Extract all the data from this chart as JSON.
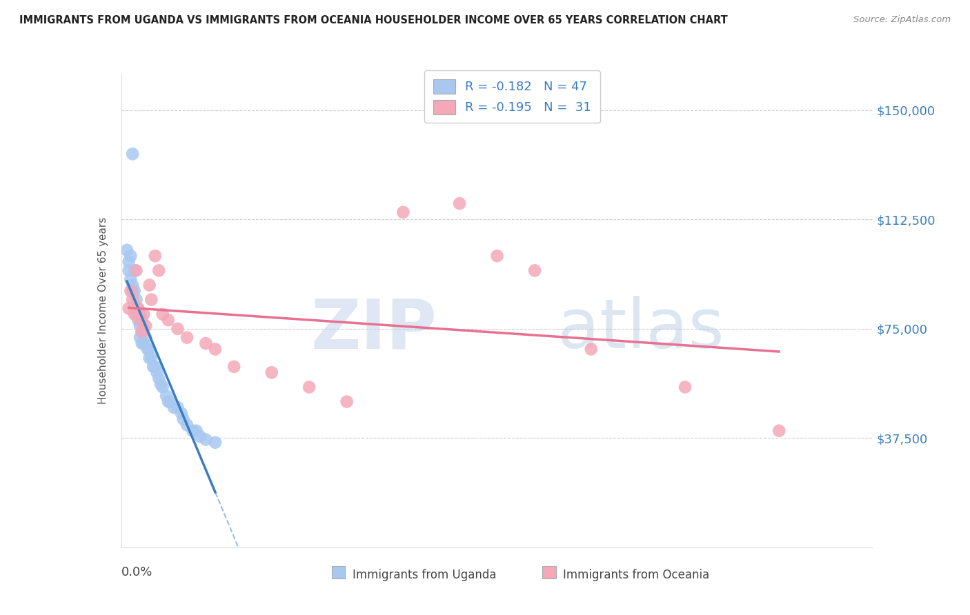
{
  "title": "IMMIGRANTS FROM UGANDA VS IMMIGRANTS FROM OCEANIA HOUSEHOLDER INCOME OVER 65 YEARS CORRELATION CHART",
  "source": "Source: ZipAtlas.com",
  "ylabel": "Householder Income Over 65 years",
  "xlim": [
    0.0,
    0.4
  ],
  "ylim": [
    0,
    162500
  ],
  "yticks": [
    0,
    37500,
    75000,
    112500,
    150000
  ],
  "ytick_labels": [
    "",
    "$37,500",
    "$75,000",
    "$112,500",
    "$150,000"
  ],
  "uganda_color": "#a8c8f0",
  "oceania_color": "#f4a8b8",
  "uganda_line_color": "#3a7dbf",
  "oceania_line_color": "#e87090",
  "uganda_R": -0.182,
  "uganda_N": 47,
  "oceania_R": -0.195,
  "oceania_N": 31,
  "legend_label_uganda": "Immigrants from Uganda",
  "legend_label_oceania": "Immigrants from Oceania",
  "watermark_zip": "ZIP",
  "watermark_atlas": "atlas",
  "uganda_x": [
    0.006,
    0.003,
    0.004,
    0.004,
    0.005,
    0.005,
    0.006,
    0.006,
    0.007,
    0.007,
    0.007,
    0.008,
    0.008,
    0.009,
    0.009,
    0.01,
    0.01,
    0.01,
    0.011,
    0.011,
    0.011,
    0.012,
    0.012,
    0.013,
    0.014,
    0.015,
    0.015,
    0.016,
    0.017,
    0.018,
    0.019,
    0.02,
    0.021,
    0.022,
    0.024,
    0.025,
    0.026,
    0.028,
    0.03,
    0.032,
    0.033,
    0.035,
    0.038,
    0.04,
    0.042,
    0.045,
    0.05
  ],
  "uganda_y": [
    135000,
    102000,
    98000,
    95000,
    100000,
    92000,
    90000,
    88000,
    95000,
    88000,
    82000,
    85000,
    80000,
    82000,
    78000,
    80000,
    76000,
    72000,
    78000,
    74000,
    70000,
    75000,
    70000,
    72000,
    68000,
    68000,
    65000,
    65000,
    62000,
    62000,
    60000,
    58000,
    56000,
    55000,
    52000,
    50000,
    50000,
    48000,
    48000,
    46000,
    44000,
    42000,
    40000,
    40000,
    38000,
    37000,
    36000
  ],
  "oceania_x": [
    0.004,
    0.005,
    0.006,
    0.007,
    0.008,
    0.009,
    0.01,
    0.011,
    0.012,
    0.013,
    0.015,
    0.016,
    0.018,
    0.02,
    0.022,
    0.025,
    0.03,
    0.035,
    0.045,
    0.05,
    0.06,
    0.08,
    0.1,
    0.12,
    0.15,
    0.18,
    0.2,
    0.22,
    0.25,
    0.3,
    0.35
  ],
  "oceania_y": [
    82000,
    88000,
    85000,
    80000,
    95000,
    82000,
    78000,
    74000,
    80000,
    76000,
    90000,
    85000,
    100000,
    95000,
    80000,
    78000,
    75000,
    72000,
    70000,
    68000,
    62000,
    60000,
    55000,
    50000,
    115000,
    118000,
    100000,
    95000,
    68000,
    55000,
    40000
  ]
}
